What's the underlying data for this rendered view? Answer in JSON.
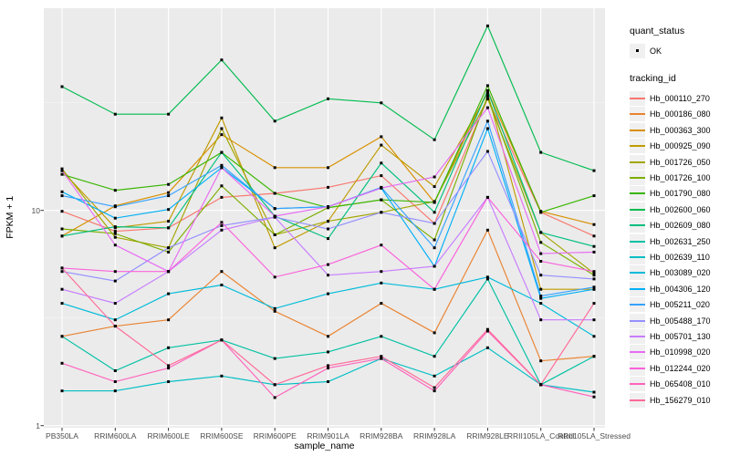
{
  "figure": {
    "bg": "#FFFFFF",
    "panel_bg": "#EBEBEB",
    "grid_major_color": "#FFFFFF",
    "grid_minor_opacity": 0.55,
    "tick_mark_color": "#333333",
    "axis_text_color": "#4D4D4D",
    "point_color": "#000000"
  },
  "axes": {
    "x_title": "sample_name",
    "y_title": "FPKM + 1",
    "y_tick_labels": [
      "1",
      "10"
    ]
  },
  "legend": {
    "quant_status_title": "quant_status",
    "quant_status_items": [
      {
        "label": "OK",
        "marker": "point-icon"
      }
    ],
    "tracking_id_title": "tracking_id"
  },
  "chart_data": {
    "type": "line",
    "title": "",
    "xlabel": "sample_name",
    "ylabel": "FPKM + 1",
    "x_categories": [
      "PB350LA",
      "RRIM600LA",
      "RRIM600LE",
      "RRIM600SE",
      "RRIM600PE",
      "RRIM901LA",
      "RRIM928BA",
      "RRIM928LA",
      "RRIM928LE",
      "RRII105LA_Control",
      "RRII105LA_Stressed"
    ],
    "y_scale": "log10",
    "y_ticks": [
      1,
      10
    ],
    "y_minor_ticks": [
      3.1623,
      31.623
    ],
    "ylim": [
      1,
      86
    ],
    "grid": true,
    "point_shape": "filled-square",
    "quant_status": "OK",
    "legend_position": "right",
    "series": [
      {
        "name": "Hb_000110_270",
        "color": "#F8766D",
        "values": [
          9.9,
          8.0,
          8.3,
          11.5,
          12.0,
          12.8,
          14.5,
          8.7,
          33.0,
          9.8,
          7.6
        ]
      },
      {
        "name": "Hb_000186_080",
        "color": "#EA8331",
        "values": [
          2.6,
          2.9,
          3.1,
          5.2,
          3.4,
          2.6,
          3.7,
          2.7,
          8.1,
          2.0,
          2.1
        ]
      },
      {
        "name": "Hb_000363_300",
        "color": "#D89000",
        "values": [
          7.6,
          10.5,
          12.1,
          22.5,
          15.8,
          15.8,
          22.0,
          10.9,
          36.0,
          9.9,
          8.6
        ]
      },
      {
        "name": "Hb_000925_090",
        "color": "#C09B00",
        "values": [
          15.3,
          8.3,
          8.9,
          26.9,
          6.7,
          8.9,
          20.1,
          12.9,
          35.0,
          4.3,
          4.3
        ]
      },
      {
        "name": "Hb_001726_050",
        "color": "#A3A500",
        "values": [
          15.6,
          7.5,
          6.7,
          24.0,
          7.7,
          8.9,
          9.8,
          11.0,
          33.0,
          7.9,
          5.1
        ]
      },
      {
        "name": "Hb_001726_100",
        "color": "#7CAE00",
        "values": [
          8.2,
          7.8,
          6.4,
          13.0,
          7.7,
          10.3,
          11.2,
          7.3,
          34.0,
          7.1,
          5.0
        ]
      },
      {
        "name": "Hb_001790_080",
        "color": "#39B600",
        "values": [
          14.7,
          12.4,
          13.2,
          18.6,
          12.0,
          10.3,
          11.2,
          10.9,
          38.0,
          9.8,
          11.7
        ]
      },
      {
        "name": "Hb_002600_060",
        "color": "#00BB4E",
        "values": [
          37.6,
          28.0,
          28.0,
          50.0,
          26.0,
          33.0,
          31.6,
          21.3,
          72.0,
          18.6,
          15.3
        ]
      },
      {
        "name": "Hb_002609_080",
        "color": "#00BF7D",
        "values": [
          7.6,
          8.4,
          8.3,
          18.6,
          9.4,
          7.4,
          16.6,
          9.8,
          36.0,
          7.9,
          6.8
        ]
      },
      {
        "name": "Hb_002631_250",
        "color": "#00C1A3",
        "values": [
          2.6,
          1.8,
          2.3,
          2.5,
          2.05,
          2.2,
          2.6,
          2.1,
          4.8,
          1.55,
          2.1
        ]
      },
      {
        "name": "Hb_002639_110",
        "color": "#00BFC4",
        "values": [
          1.45,
          1.45,
          1.6,
          1.7,
          1.55,
          1.6,
          2.05,
          1.7,
          2.3,
          1.55,
          1.43
        ]
      },
      {
        "name": "Hb_003089_020",
        "color": "#00BBDA",
        "values": [
          3.7,
          3.1,
          4.1,
          4.5,
          3.5,
          4.1,
          4.6,
          4.3,
          4.9,
          3.7,
          2.6
        ]
      },
      {
        "name": "Hb_004306_120",
        "color": "#00B0F6",
        "values": [
          12.2,
          9.2,
          10.1,
          15.8,
          10.2,
          10.4,
          12.7,
          5.5,
          24.0,
          3.9,
          4.3
        ]
      },
      {
        "name": "Hb_005211_020",
        "color": "#35A2FF",
        "values": [
          11.7,
          10.4,
          11.7,
          16.2,
          10.2,
          10.4,
          12.8,
          6.7,
          26.0,
          4.0,
          4.4
        ]
      },
      {
        "name": "Hb_005488_170",
        "color": "#9590FF",
        "values": [
          5.2,
          4.7,
          6.7,
          8.5,
          9.3,
          8.2,
          9.8,
          8.7,
          18.8,
          5.0,
          4.8
        ]
      },
      {
        "name": "Hb_005701_130",
        "color": "#C77CFF",
        "values": [
          4.3,
          3.7,
          5.2,
          8.1,
          9.3,
          5.0,
          5.2,
          5.5,
          11.5,
          3.1,
          3.1
        ]
      },
      {
        "name": "Hb_010998_020",
        "color": "#E76BF3",
        "values": [
          15.3,
          6.9,
          5.2,
          15.8,
          9.4,
          10.4,
          12.7,
          14.3,
          30.0,
          6.3,
          6.4
        ]
      },
      {
        "name": "Hb_012244_020",
        "color": "#FA62DB",
        "values": [
          5.4,
          5.2,
          5.2,
          8.8,
          4.9,
          5.6,
          6.9,
          4.3,
          11.5,
          5.8,
          5.2
        ]
      },
      {
        "name": "Hb_065408_010",
        "color": "#FF62BC",
        "values": [
          1.95,
          1.6,
          1.85,
          2.5,
          1.35,
          1.85,
          2.05,
          1.45,
          2.75,
          1.55,
          1.36
        ]
      },
      {
        "name": "Hb_156279_010",
        "color": "#FF6A98",
        "values": [
          5.4,
          2.9,
          1.9,
          2.5,
          1.55,
          1.9,
          2.1,
          1.5,
          2.8,
          1.55,
          3.7
        ]
      }
    ]
  }
}
